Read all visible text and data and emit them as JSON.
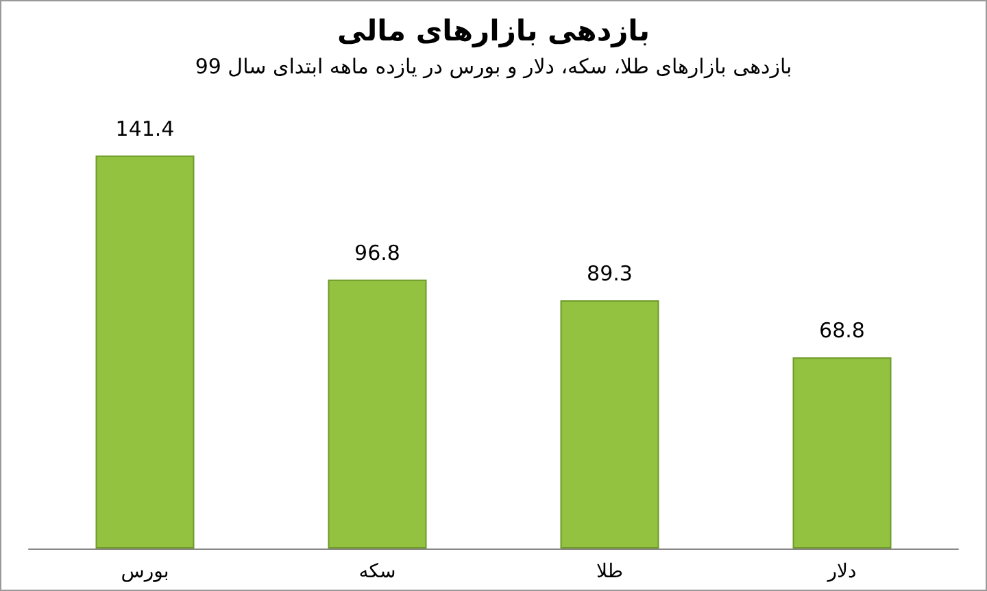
{
  "chart_data": {
    "type": "bar",
    "title": "بازدهی بازارهای مالی",
    "subtitle": "بازدهی بازارهای طلا، سکه، دلار و بورس در یازده ماهه ابتدای سال 99",
    "categories": [
      "بورس",
      "سکه",
      "طلا",
      "دلار"
    ],
    "values": [
      141.4,
      96.8,
      89.3,
      68.8
    ],
    "color": "#92c240",
    "data_labels": true
  }
}
